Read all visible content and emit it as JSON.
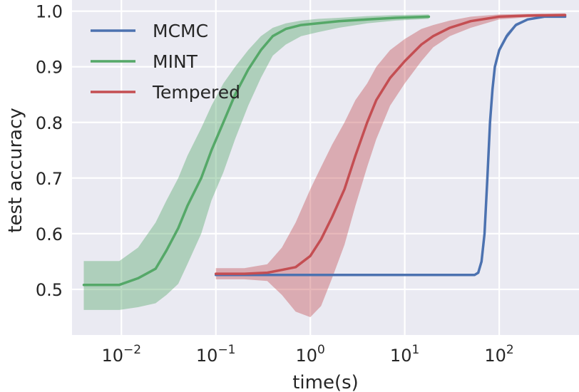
{
  "chart_data": {
    "type": "line",
    "xlabel": "time(s)",
    "ylabel": "test accuracy",
    "xscale": "log",
    "xlim": [
      0.003,
      700
    ],
    "ylim": [
      0.418,
      1.02
    ],
    "x_ticks": [
      {
        "value": 0.01,
        "base": "10",
        "exp": "−2"
      },
      {
        "value": 0.1,
        "base": "10",
        "exp": "−1"
      },
      {
        "value": 1,
        "base": "10",
        "exp": "0"
      },
      {
        "value": 10,
        "base": "10",
        "exp": "1"
      },
      {
        "value": 100,
        "base": "10",
        "exp": "2"
      }
    ],
    "y_ticks": [
      {
        "value": 0.5,
        "label": "0.5"
      },
      {
        "value": 0.6,
        "label": "0.6"
      },
      {
        "value": 0.7,
        "label": "0.7"
      },
      {
        "value": 0.8,
        "label": "0.8"
      },
      {
        "value": 0.9,
        "label": "0.9"
      },
      {
        "value": 1.0,
        "label": "1.0"
      }
    ],
    "grid": true,
    "background": "#eaeaf2",
    "legend_position": "upper-left",
    "series": [
      {
        "name": "MCMC",
        "color": "#4c72b0",
        "x": [
          0.1,
          2,
          10,
          40,
          55,
          60,
          65,
          70,
          75,
          80,
          85,
          90,
          100,
          120,
          150,
          200,
          300,
          500
        ],
        "y": [
          0.526,
          0.526,
          0.526,
          0.526,
          0.526,
          0.53,
          0.55,
          0.6,
          0.7,
          0.8,
          0.86,
          0.9,
          0.93,
          0.955,
          0.975,
          0.985,
          0.99,
          0.99
        ],
        "lower": [
          0.526,
          0.526,
          0.526,
          0.526,
          0.526,
          0.528,
          0.545,
          0.59,
          0.69,
          0.79,
          0.85,
          0.89,
          0.925,
          0.95,
          0.972,
          0.983,
          0.988,
          0.989
        ],
        "upper": [
          0.526,
          0.526,
          0.526,
          0.526,
          0.527,
          0.533,
          0.555,
          0.61,
          0.71,
          0.81,
          0.87,
          0.91,
          0.935,
          0.96,
          0.978,
          0.987,
          0.992,
          0.992
        ]
      },
      {
        "name": "MINT",
        "color": "#55a868",
        "x": [
          0.004,
          0.0095,
          0.015,
          0.023,
          0.03,
          0.04,
          0.05,
          0.07,
          0.09,
          0.12,
          0.16,
          0.22,
          0.3,
          0.4,
          0.55,
          0.8,
          1.2,
          2,
          4,
          8,
          18
        ],
        "y": [
          0.508,
          0.508,
          0.52,
          0.537,
          0.57,
          0.61,
          0.65,
          0.7,
          0.75,
          0.8,
          0.85,
          0.895,
          0.93,
          0.955,
          0.968,
          0.975,
          0.978,
          0.982,
          0.985,
          0.988,
          0.99
        ],
        "lower": [
          0.463,
          0.463,
          0.468,
          0.475,
          0.49,
          0.51,
          0.545,
          0.6,
          0.66,
          0.71,
          0.77,
          0.83,
          0.88,
          0.92,
          0.94,
          0.955,
          0.962,
          0.97,
          0.978,
          0.983,
          0.986
        ],
        "upper": [
          0.551,
          0.551,
          0.575,
          0.62,
          0.66,
          0.7,
          0.74,
          0.79,
          0.83,
          0.87,
          0.9,
          0.93,
          0.955,
          0.97,
          0.978,
          0.983,
          0.986,
          0.988,
          0.991,
          0.993,
          0.994
        ]
      },
      {
        "name": "Tempered",
        "color": "#c44e52",
        "x": [
          0.1,
          0.2,
          0.35,
          0.5,
          0.7,
          1,
          1.3,
          1.7,
          2.3,
          3,
          4,
          5,
          7,
          10,
          15,
          20,
          30,
          50,
          100,
          200,
          500
        ],
        "y": [
          0.528,
          0.528,
          0.53,
          0.535,
          0.54,
          0.56,
          0.59,
          0.63,
          0.68,
          0.74,
          0.8,
          0.84,
          0.88,
          0.91,
          0.94,
          0.955,
          0.97,
          0.982,
          0.99,
          0.992,
          0.993
        ],
        "lower": [
          0.518,
          0.518,
          0.515,
          0.49,
          0.46,
          0.45,
          0.47,
          0.52,
          0.58,
          0.65,
          0.72,
          0.77,
          0.83,
          0.87,
          0.91,
          0.935,
          0.955,
          0.97,
          0.985,
          0.989,
          0.991
        ],
        "upper": [
          0.538,
          0.538,
          0.545,
          0.575,
          0.62,
          0.68,
          0.72,
          0.76,
          0.8,
          0.84,
          0.87,
          0.9,
          0.93,
          0.95,
          0.968,
          0.975,
          0.983,
          0.99,
          0.994,
          0.995,
          0.996
        ]
      }
    ]
  }
}
